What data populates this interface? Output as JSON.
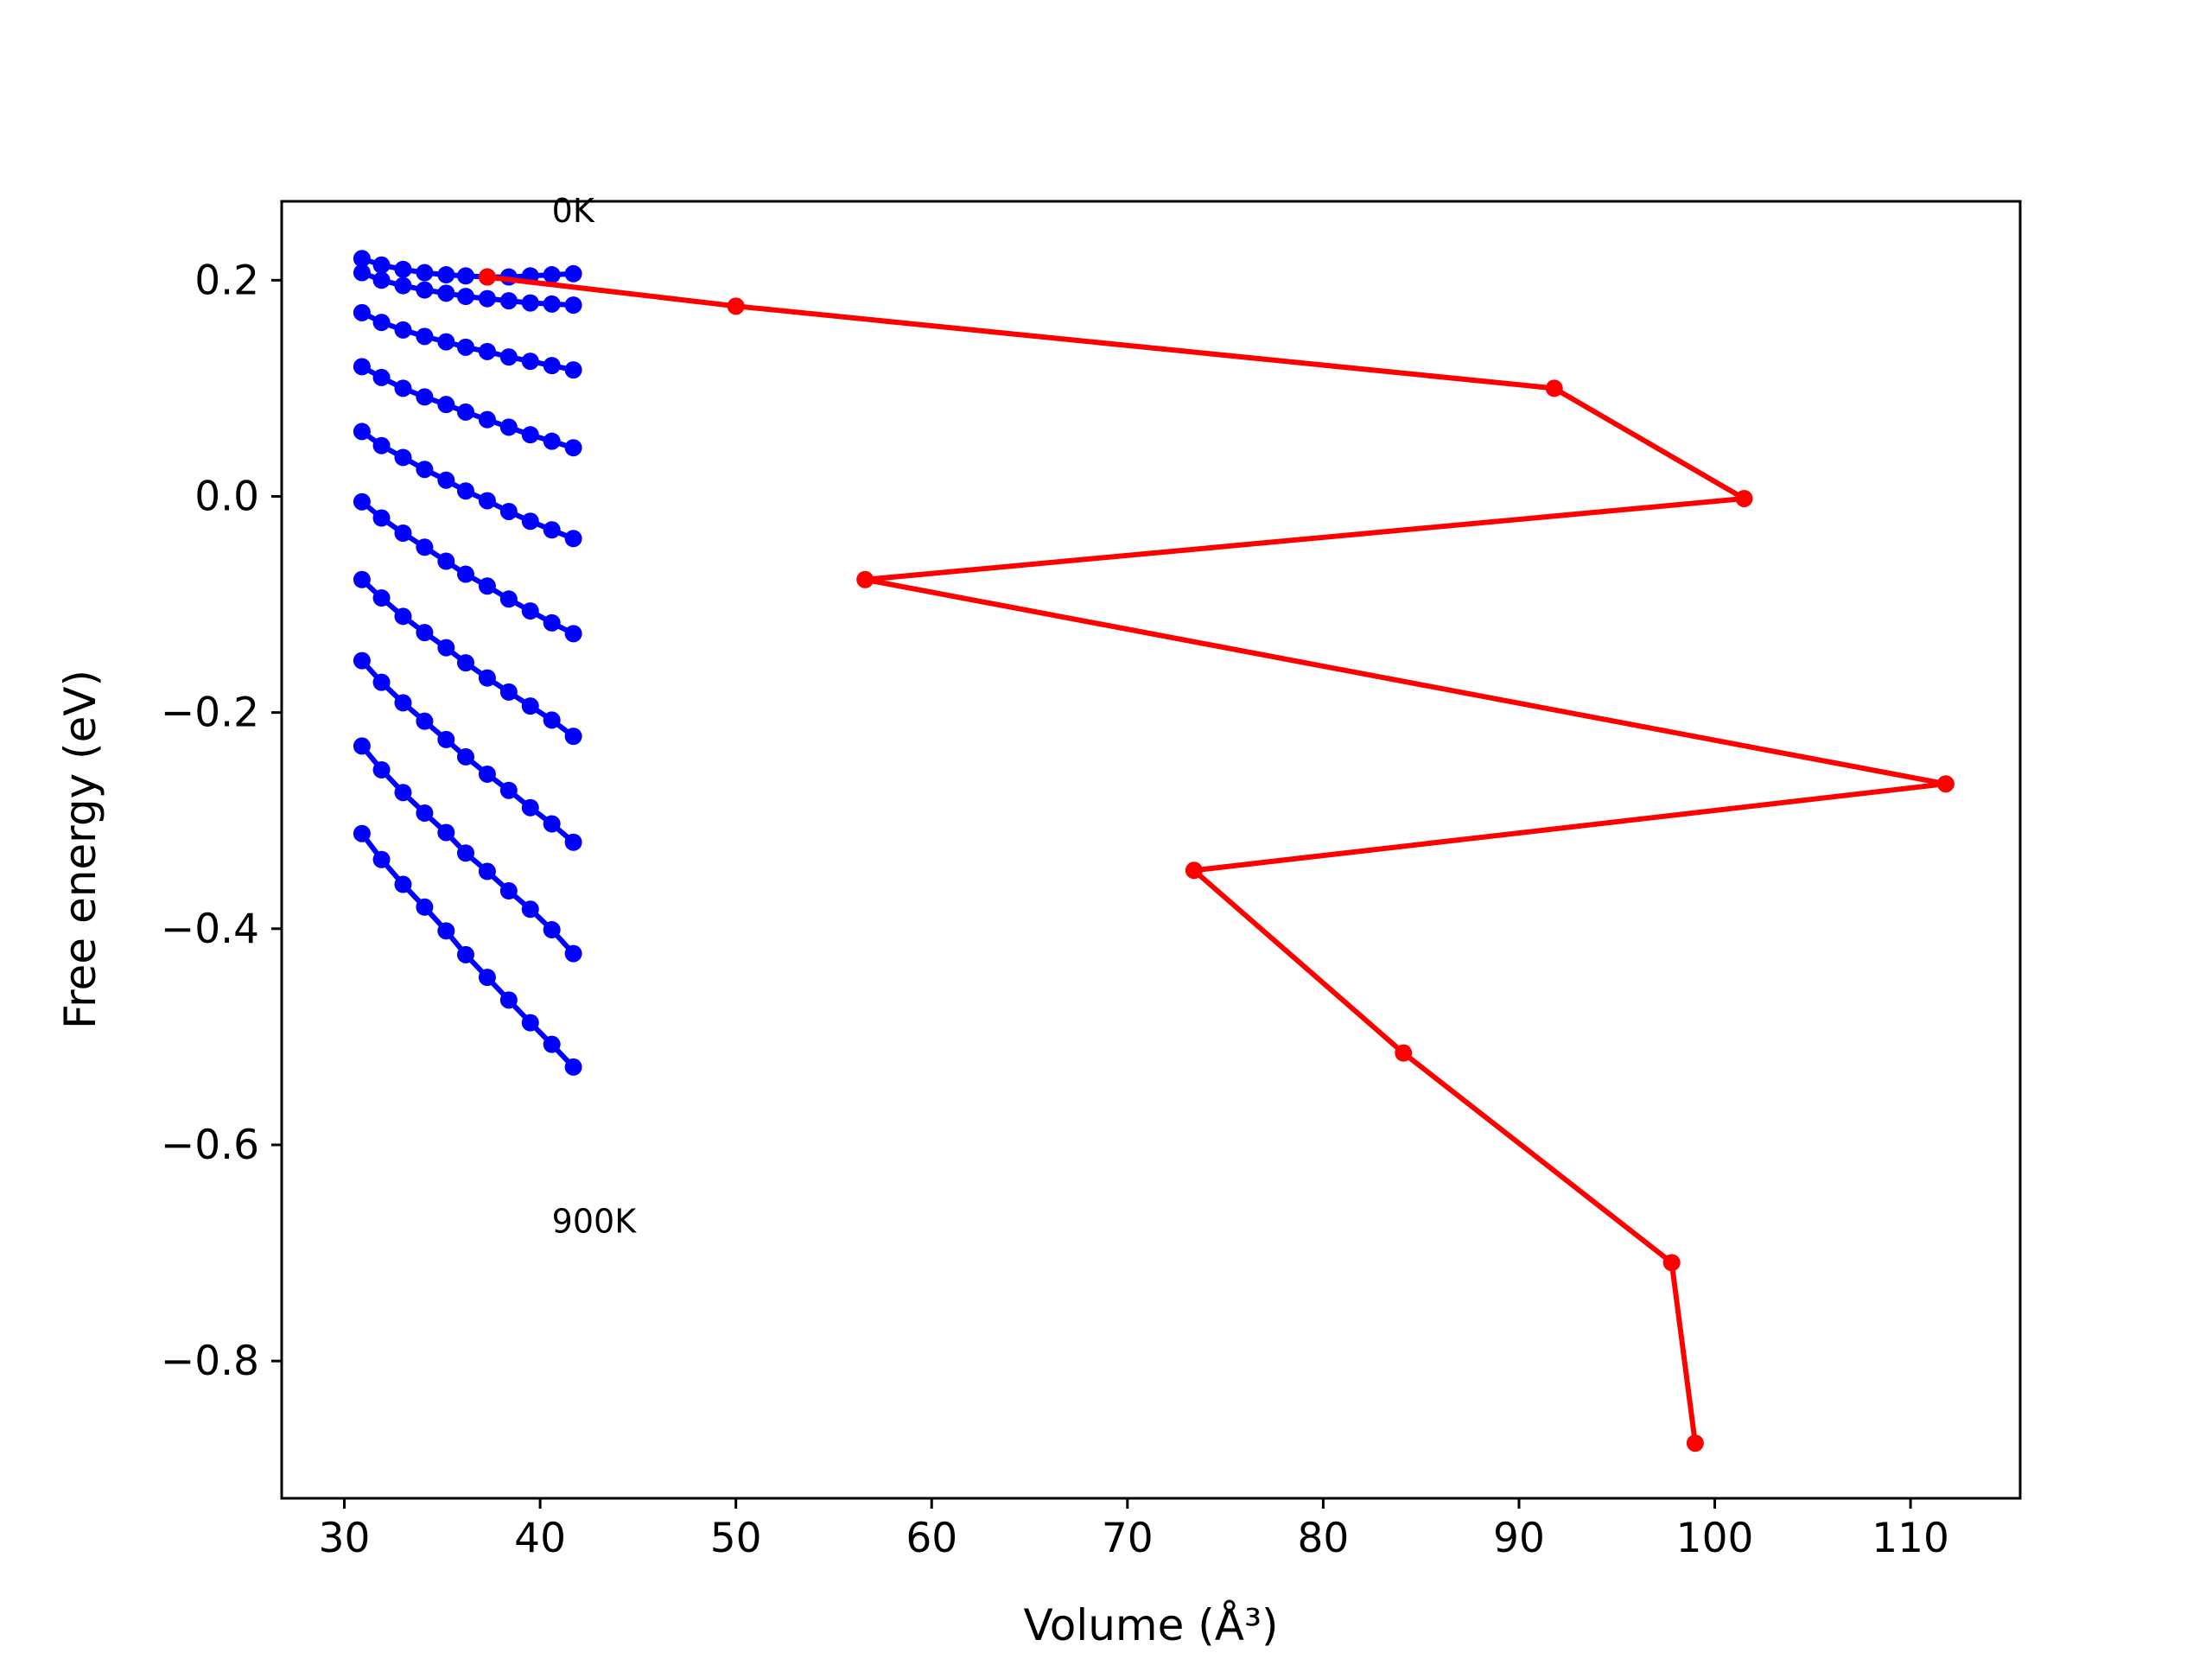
{
  "chart_data": {
    "type": "line",
    "xlabel": "Volume (Å³)",
    "ylabel": "Free energy (eV)",
    "xlim": [
      26.8,
      115.6
    ],
    "ylim": [
      -0.927,
      0.273
    ],
    "xticks": [
      30,
      40,
      50,
      60,
      70,
      80,
      90,
      100,
      110
    ],
    "yticks": [
      0.2,
      0.0,
      -0.2,
      -0.4,
      -0.6,
      -0.8
    ],
    "ytick_labels": [
      "0.2",
      "0.0",
      "−0.2",
      "−0.4",
      "−0.6",
      "−0.8"
    ],
    "grid": false,
    "annotations": [
      {
        "text": "0K",
        "x": 40.6,
        "y": 0.265
      },
      {
        "text": "900K",
        "x": 40.6,
        "y": -0.67
      }
    ],
    "colors": {
      "curves": "#0000ff",
      "minimum_path": "#ff0000"
    },
    "series_curves": [
      {
        "x": [
          30.9,
          31.9,
          33.0,
          34.1,
          35.2,
          36.2,
          37.3,
          38.4,
          39.5,
          40.6,
          41.7
        ],
        "y": [
          0.22,
          0.214,
          0.21,
          0.207,
          0.205,
          0.204,
          0.203,
          0.203,
          0.204,
          0.205,
          0.206
        ]
      },
      {
        "x": [
          30.9,
          31.9,
          33.0,
          34.1,
          35.2,
          36.2,
          37.3,
          38.4,
          39.5,
          40.6,
          41.7
        ],
        "y": [
          0.207,
          0.2,
          0.195,
          0.191,
          0.188,
          0.185,
          0.183,
          0.181,
          0.179,
          0.178,
          0.177
        ]
      },
      {
        "x": [
          30.9,
          31.9,
          33.0,
          34.1,
          35.2,
          36.2,
          37.3,
          38.4,
          39.5,
          40.6,
          41.7
        ],
        "y": [
          0.17,
          0.161,
          0.154,
          0.148,
          0.143,
          0.138,
          0.134,
          0.129,
          0.125,
          0.121,
          0.117
        ]
      },
      {
        "x": [
          30.9,
          31.9,
          33.0,
          34.1,
          35.2,
          36.2,
          37.3,
          38.4,
          39.5,
          40.6,
          41.7
        ],
        "y": [
          0.12,
          0.11,
          0.1,
          0.092,
          0.085,
          0.078,
          0.071,
          0.064,
          0.057,
          0.051,
          0.045
        ]
      },
      {
        "x": [
          30.9,
          31.9,
          33.0,
          34.1,
          35.2,
          36.2,
          37.3,
          38.4,
          39.5,
          40.6,
          41.7
        ],
        "y": [
          0.06,
          0.047,
          0.036,
          0.025,
          0.015,
          0.005,
          -0.004,
          -0.014,
          -0.023,
          -0.031,
          -0.039
        ]
      },
      {
        "x": [
          30.9,
          31.9,
          33.0,
          34.1,
          35.2,
          36.2,
          37.3,
          38.4,
          39.5,
          40.6,
          41.7
        ],
        "y": [
          -0.005,
          -0.02,
          -0.034,
          -0.047,
          -0.06,
          -0.072,
          -0.083,
          -0.095,
          -0.106,
          -0.117,
          -0.127
        ]
      },
      {
        "x": [
          30.9,
          31.9,
          33.0,
          34.1,
          35.2,
          36.2,
          37.3,
          38.4,
          39.5,
          40.6,
          41.7
        ],
        "y": [
          -0.077,
          -0.094,
          -0.111,
          -0.126,
          -0.14,
          -0.154,
          -0.168,
          -0.181,
          -0.194,
          -0.207,
          -0.222
        ]
      },
      {
        "x": [
          30.9,
          31.9,
          33.0,
          34.1,
          35.2,
          36.2,
          37.3,
          38.4,
          39.5,
          40.6,
          41.7
        ],
        "y": [
          -0.152,
          -0.172,
          -0.191,
          -0.208,
          -0.225,
          -0.241,
          -0.257,
          -0.272,
          -0.288,
          -0.303,
          -0.32
        ]
      },
      {
        "x": [
          30.9,
          31.9,
          33.0,
          34.1,
          35.2,
          36.2,
          37.3,
          38.4,
          39.5,
          40.6,
          41.7
        ],
        "y": [
          -0.231,
          -0.253,
          -0.274,
          -0.293,
          -0.311,
          -0.33,
          -0.347,
          -0.365,
          -0.382,
          -0.401,
          -0.423
        ]
      },
      {
        "x": [
          30.9,
          31.9,
          33.0,
          34.1,
          35.2,
          36.2,
          37.3,
          38.4,
          39.5,
          40.6,
          41.7
        ],
        "y": [
          -0.312,
          -0.336,
          -0.359,
          -0.38,
          -0.402,
          -0.424,
          -0.445,
          -0.466,
          -0.487,
          -0.507,
          -0.528
        ]
      }
    ],
    "series_minimum": {
      "x": [
        37.3,
        50.0,
        91.8,
        101.5,
        56.6,
        111.8,
        73.4,
        84.1,
        97.8,
        99.0
      ],
      "y": [
        0.203,
        0.176,
        0.1,
        -0.002,
        -0.077,
        -0.266,
        -0.346,
        -0.515,
        -0.709,
        -0.876
      ]
    }
  }
}
